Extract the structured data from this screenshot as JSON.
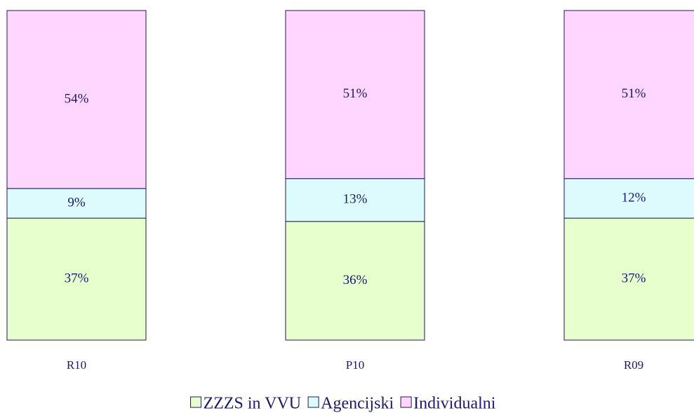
{
  "chart_data": {
    "type": "stacked_bar",
    "categories": [
      "R10",
      "P10",
      "R09"
    ],
    "series": [
      {
        "name": "ZZZS in VVU",
        "color": "#e6ffcc",
        "values": [
          37,
          36,
          37
        ],
        "value_labels": [
          "37%",
          "36%",
          "37%"
        ]
      },
      {
        "name": "Agencijski",
        "color": "#ddfafc",
        "values": [
          9,
          13,
          12
        ],
        "value_labels": [
          "9%",
          "13%",
          "12%"
        ]
      },
      {
        "name": "Individualni",
        "color": "#ffd6ff",
        "values": [
          54,
          51,
          51
        ],
        "value_labels": [
          "54%",
          "51%",
          "51%"
        ]
      }
    ],
    "legend": "bottom"
  }
}
